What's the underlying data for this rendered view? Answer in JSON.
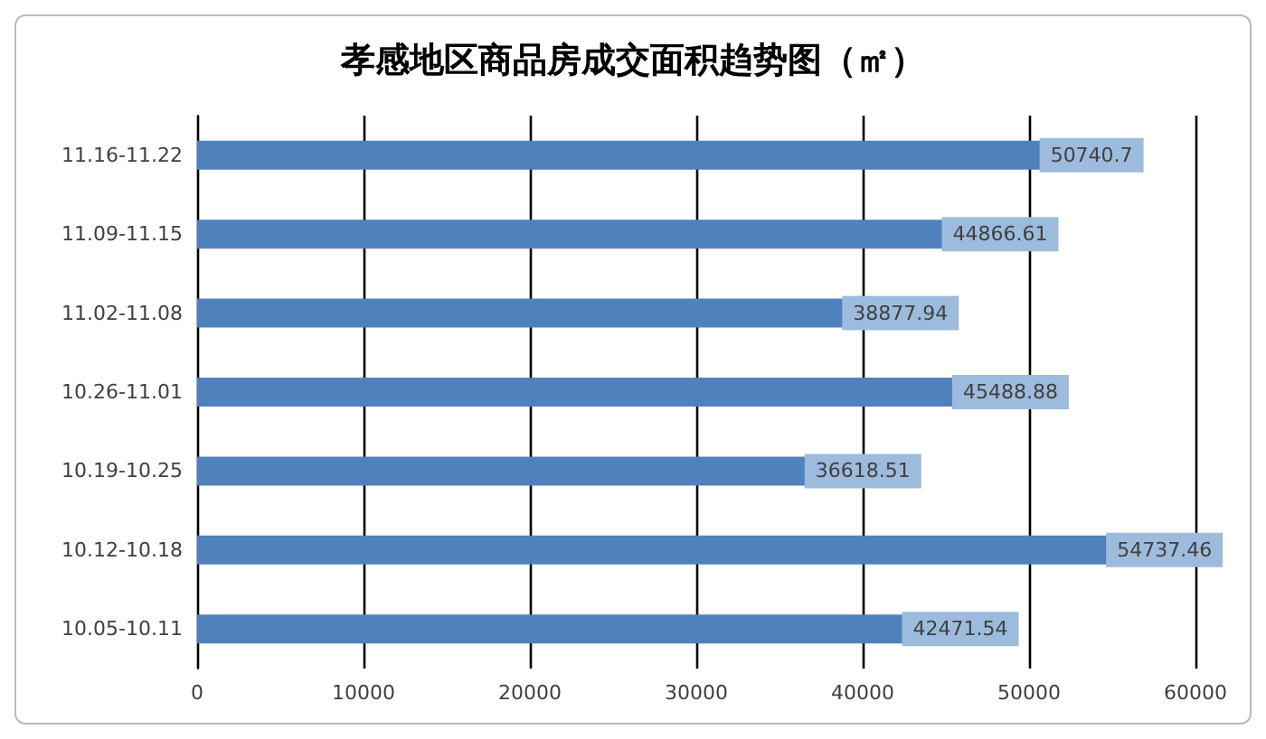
{
  "chart_data": {
    "type": "bar",
    "orientation": "horizontal",
    "title": "孝感地区商品房成交面积趋势图（㎡）",
    "categories": [
      "11.16-11.22",
      "11.09-11.15",
      "11.02-11.08",
      "10.26-11.01",
      "10.19-10.25",
      "10.12-10.18",
      "10.05-10.11"
    ],
    "values": [
      50740.7,
      44866.61,
      38877.94,
      45488.88,
      36618.51,
      54737.46,
      42471.54
    ],
    "color": "#4f81bd",
    "xlim": [
      0,
      60000
    ],
    "xticks": [
      0,
      10000,
      20000,
      30000,
      40000,
      50000,
      60000
    ],
    "grid": "x",
    "data_labels": true
  }
}
